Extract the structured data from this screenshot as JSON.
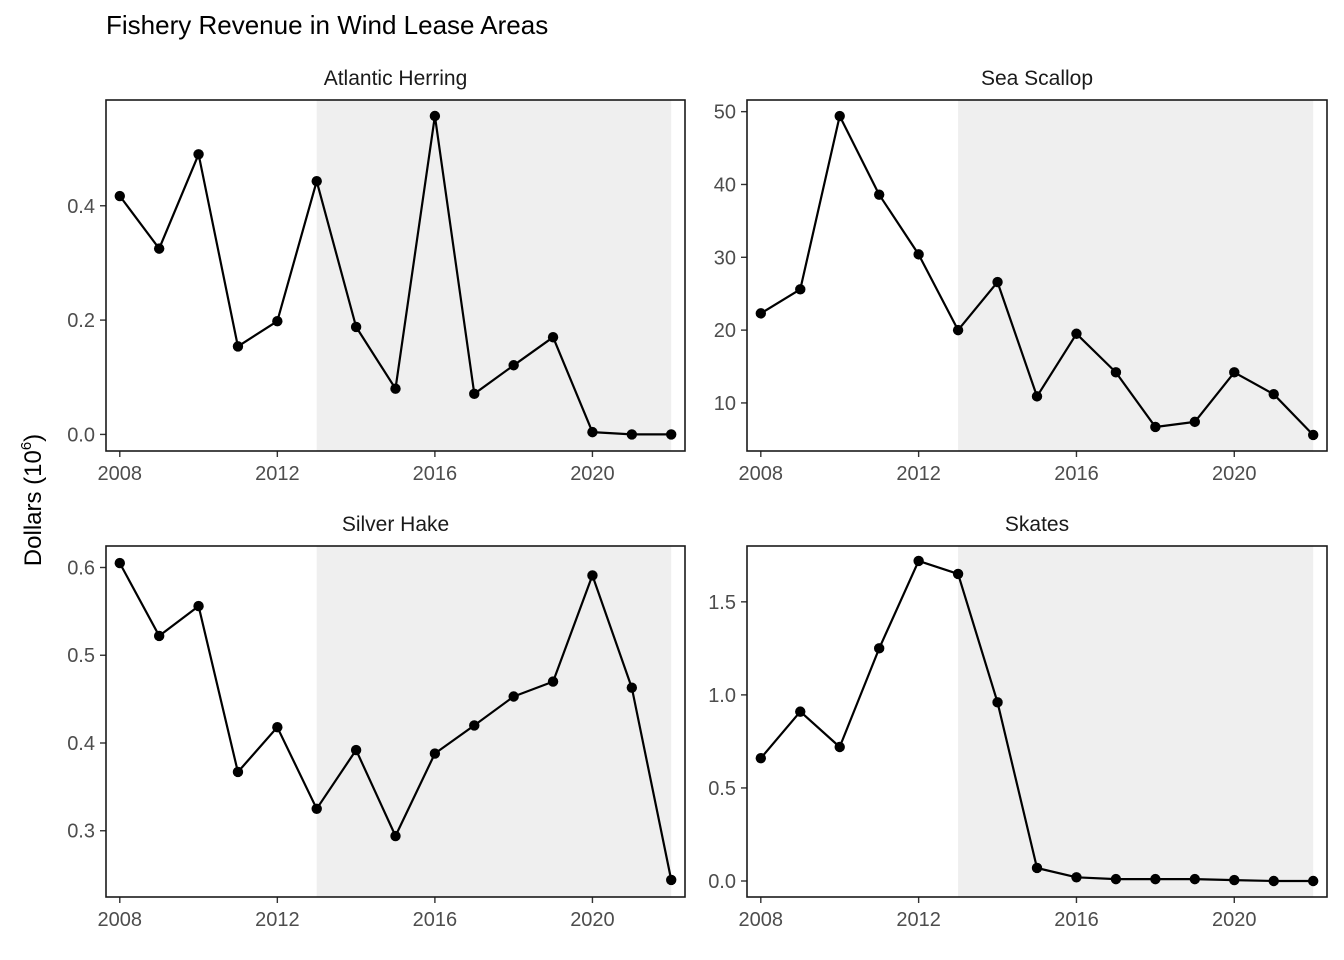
{
  "chart_data": {
    "type": "line",
    "title": "Fishery Revenue in Wind Lease Areas",
    "ylabel_base": "Dollars (10",
    "ylabel_sup": "6",
    "ylabel_end": ")",
    "xlabel": "",
    "shaded_region": {
      "x_start": 2013,
      "x_end": 2022,
      "color": "#efefef"
    },
    "x_ticks": [
      2008,
      2012,
      2016,
      2020
    ],
    "x_tick_labels": [
      "2008",
      "2012",
      "2016",
      "2020"
    ],
    "colors": {
      "line": "#000000",
      "point": "#000000",
      "shade": "#efefef",
      "frame": "#1a1a1a"
    },
    "panels": [
      {
        "name": "Atlantic Herring",
        "xlim": [
          2007.65,
          2022.35
        ],
        "ylim": [
          -0.029,
          0.585
        ],
        "y_ticks": [
          0.0,
          0.2,
          0.4
        ],
        "y_tick_labels": [
          "0.0",
          "0.2",
          "0.4"
        ],
        "x": [
          2008,
          2009,
          2010,
          2011,
          2012,
          2013,
          2014,
          2015,
          2016,
          2017,
          2018,
          2019,
          2020,
          2021,
          2022
        ],
        "values": [
          0.417,
          0.325,
          0.49,
          0.154,
          0.198,
          0.443,
          0.188,
          0.08,
          0.557,
          0.071,
          0.121,
          0.17,
          0.004,
          0.0,
          0.0
        ]
      },
      {
        "name": "Sea Scallop",
        "xlim": [
          2007.65,
          2022.35
        ],
        "ylim": [
          3.4,
          51.6
        ],
        "y_ticks": [
          10,
          20,
          30,
          40,
          50
        ],
        "y_tick_labels": [
          "10",
          "20",
          "30",
          "40",
          "50"
        ],
        "x": [
          2008,
          2009,
          2010,
          2011,
          2012,
          2013,
          2014,
          2015,
          2016,
          2017,
          2018,
          2019,
          2020,
          2021,
          2022
        ],
        "values": [
          22.3,
          25.6,
          49.4,
          38.6,
          30.4,
          20.0,
          26.6,
          10.9,
          19.5,
          14.2,
          6.7,
          7.4,
          14.2,
          11.2,
          5.6
        ]
      },
      {
        "name": "Silver Hake",
        "xlim": [
          2007.65,
          2022.35
        ],
        "ylim": [
          0.2245,
          0.6245
        ],
        "y_ticks": [
          0.3,
          0.4,
          0.5,
          0.6
        ],
        "y_tick_labels": [
          "0.3",
          "0.4",
          "0.5",
          "0.6"
        ],
        "x": [
          2008,
          2009,
          2010,
          2011,
          2012,
          2013,
          2014,
          2015,
          2016,
          2017,
          2018,
          2019,
          2020,
          2021,
          2022
        ],
        "values": [
          0.605,
          0.522,
          0.556,
          0.367,
          0.418,
          0.325,
          0.392,
          0.294,
          0.388,
          0.42,
          0.453,
          0.47,
          0.591,
          0.463,
          0.244
        ]
      },
      {
        "name": "Skates",
        "xlim": [
          2007.65,
          2022.35
        ],
        "ylim": [
          -0.086,
          1.8
        ],
        "y_ticks": [
          0.0,
          0.5,
          1.0,
          1.5
        ],
        "y_tick_labels": [
          "0.0",
          "0.5",
          "1.0",
          "1.5"
        ],
        "x": [
          2008,
          2009,
          2010,
          2011,
          2012,
          2013,
          2014,
          2015,
          2016,
          2017,
          2018,
          2019,
          2020,
          2021,
          2022
        ],
        "values": [
          0.66,
          0.91,
          0.72,
          1.25,
          1.72,
          1.65,
          0.96,
          0.07,
          0.02,
          0.01,
          0.01,
          0.01,
          0.005,
          0.0,
          0.0
        ]
      }
    ]
  }
}
